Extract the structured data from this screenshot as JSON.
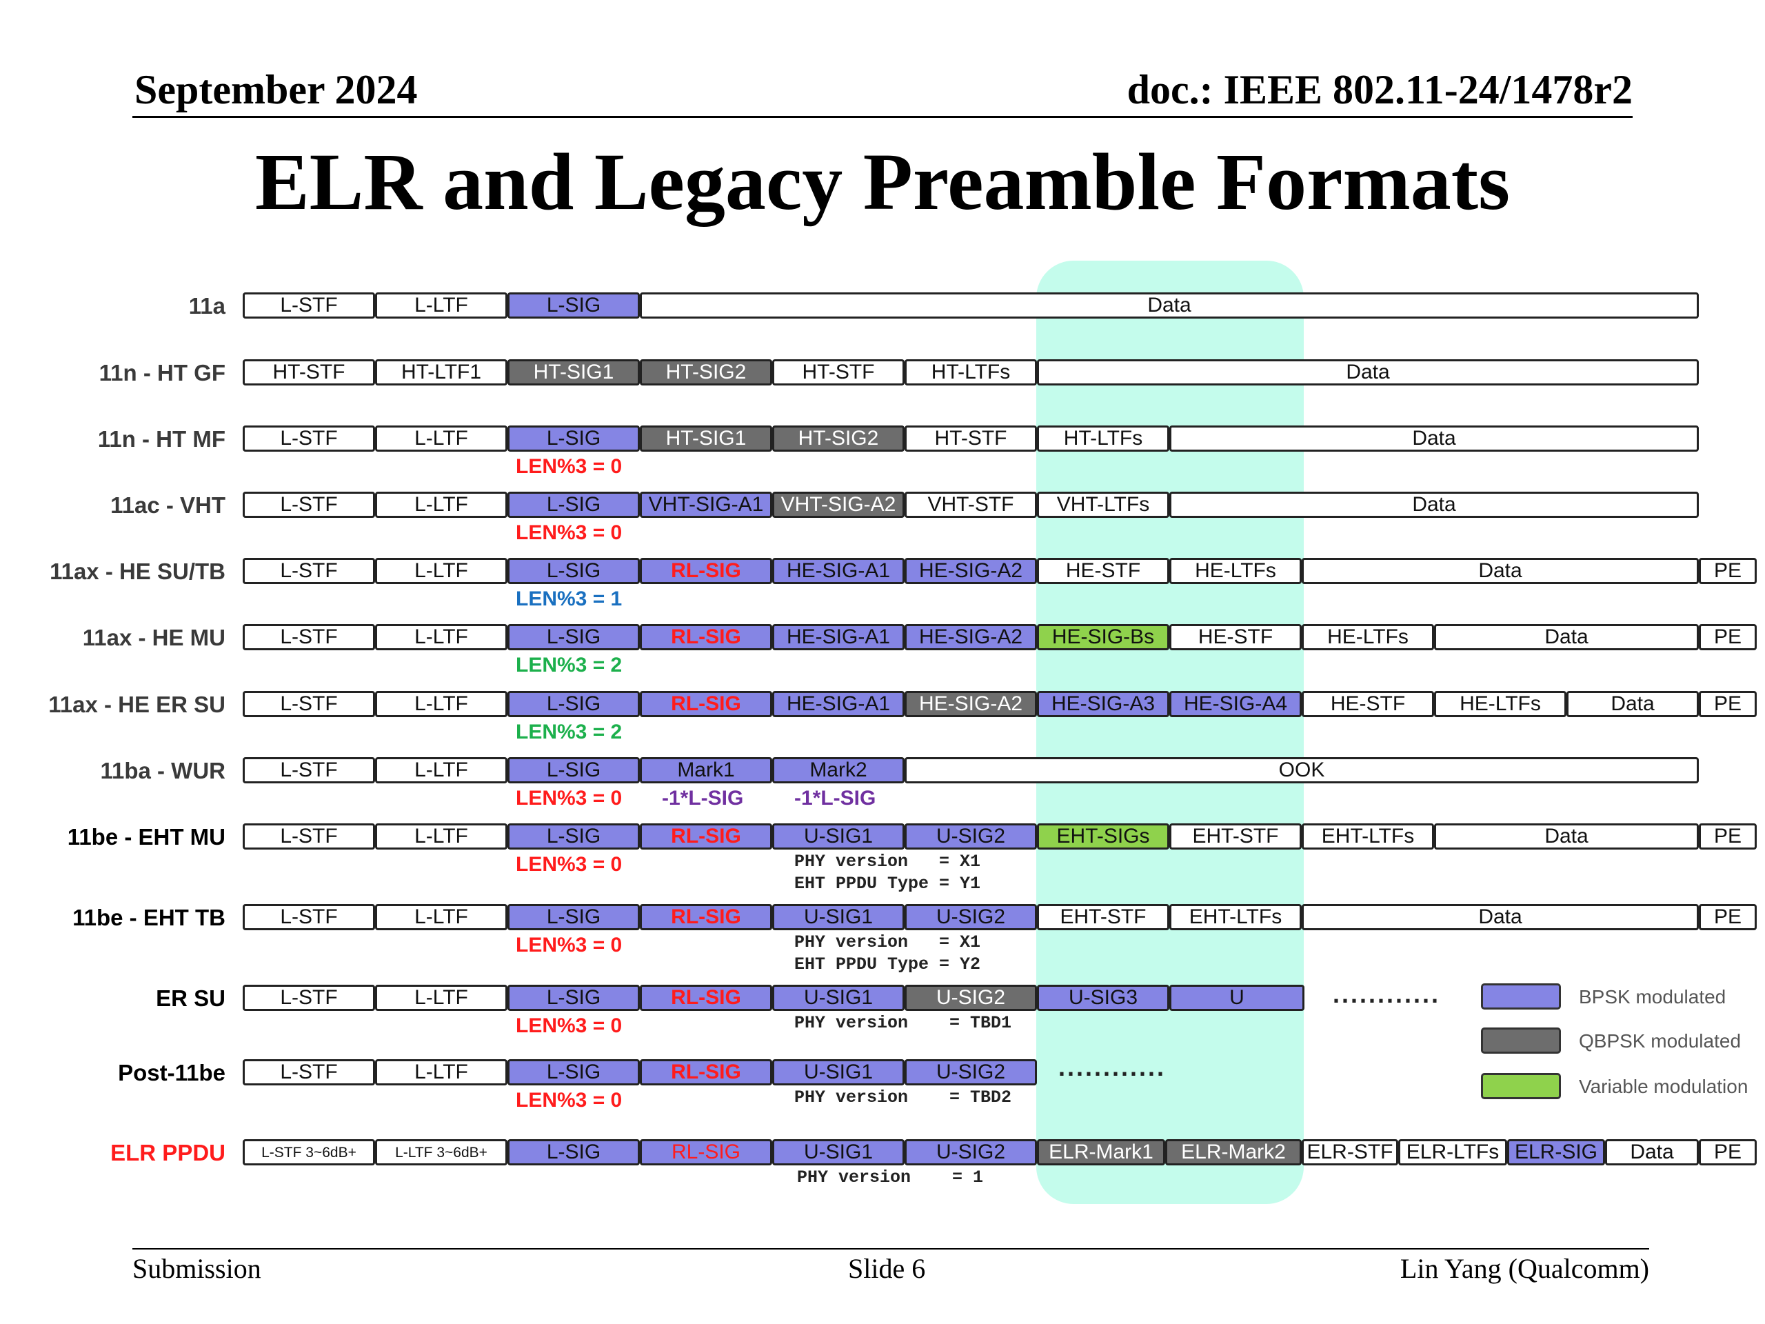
{
  "header": {
    "date": "September 2024",
    "doc": "doc.: IEEE 802.11-24/1478r2",
    "title": "ELR and Legacy Preamble Formats"
  },
  "footer": {
    "left": "Submission",
    "center": "Slide 6",
    "right": "Lin Yang (Qualcomm)"
  },
  "colors": {
    "bpsk": "#8585e4",
    "qbpsk": "#6d6d6d",
    "variable": "#8fd24c",
    "highlight": "#c4fcec",
    "red": "#ff1c1c",
    "blue": "#1a70c0",
    "green": "#1cb04c",
    "purple": "#7030a0"
  },
  "legend": [
    {
      "label": "BPSK modulated",
      "color": "#8585e4"
    },
    {
      "label": "QBPSK modulated",
      "color": "#6d6d6d"
    },
    {
      "label": "Variable modulation",
      "color": "#8fd24c"
    }
  ],
  "dots": [
    "............",
    "............"
  ],
  "rows": [
    {
      "label": "11a",
      "fields": [
        {
          "text": "L-STF",
          "mod": "none"
        },
        {
          "text": "L-LTF",
          "mod": "none"
        },
        {
          "text": "L-SIG",
          "mod": "bpsk"
        },
        {
          "text": "Data",
          "mod": "none"
        }
      ],
      "notes": []
    },
    {
      "label": "11n - HT GF",
      "fields": [
        {
          "text": "HT-STF",
          "mod": "none"
        },
        {
          "text": "HT-LTF1",
          "mod": "none"
        },
        {
          "text": "HT-SIG1",
          "mod": "qbpsk"
        },
        {
          "text": "HT-SIG2",
          "mod": "qbpsk"
        },
        {
          "text": "HT-STF",
          "mod": "none"
        },
        {
          "text": "HT-LTFs",
          "mod": "none"
        },
        {
          "text": "Data",
          "mod": "none"
        }
      ],
      "notes": []
    },
    {
      "label": "11n - HT MF",
      "fields": [
        {
          "text": "L-STF",
          "mod": "none"
        },
        {
          "text": "L-LTF",
          "mod": "none"
        },
        {
          "text": "L-SIG",
          "mod": "bpsk"
        },
        {
          "text": "HT-SIG1",
          "mod": "qbpsk"
        },
        {
          "text": "HT-SIG2",
          "mod": "qbpsk"
        },
        {
          "text": "HT-STF",
          "mod": "none"
        },
        {
          "text": "HT-LTFs",
          "mod": "none"
        },
        {
          "text": "Data",
          "mod": "none"
        }
      ],
      "notes": [
        {
          "text": "LEN%3 = 0",
          "color": "red"
        }
      ]
    },
    {
      "label": "11ac - VHT",
      "fields": [
        {
          "text": "L-STF",
          "mod": "none"
        },
        {
          "text": "L-LTF",
          "mod": "none"
        },
        {
          "text": "L-SIG",
          "mod": "bpsk"
        },
        {
          "text": "VHT-SIG-A1",
          "mod": "bpsk"
        },
        {
          "text": "VHT-SIG-A2",
          "mod": "qbpsk"
        },
        {
          "text": "VHT-STF",
          "mod": "none"
        },
        {
          "text": "VHT-LTFs",
          "mod": "none"
        },
        {
          "text": "Data",
          "mod": "none"
        }
      ],
      "notes": [
        {
          "text": "LEN%3 = 0",
          "color": "red"
        }
      ]
    },
    {
      "label": "11ax - HE SU/TB",
      "fields": [
        {
          "text": "L-STF",
          "mod": "none"
        },
        {
          "text": "L-LTF",
          "mod": "none"
        },
        {
          "text": "L-SIG",
          "mod": "bpsk"
        },
        {
          "text": "RL-SIG",
          "mod": "bpsk"
        },
        {
          "text": "HE-SIG-A1",
          "mod": "bpsk"
        },
        {
          "text": "HE-SIG-A2",
          "mod": "bpsk"
        },
        {
          "text": "HE-STF",
          "mod": "none"
        },
        {
          "text": "HE-LTFs",
          "mod": "none"
        },
        {
          "text": "Data",
          "mod": "none"
        },
        {
          "text": "PE",
          "mod": "none"
        }
      ],
      "notes": [
        {
          "text": "LEN%3 = 1",
          "color": "blue"
        }
      ]
    },
    {
      "label": "11ax - HE MU",
      "fields": [
        {
          "text": "L-STF",
          "mod": "none"
        },
        {
          "text": "L-LTF",
          "mod": "none"
        },
        {
          "text": "L-SIG",
          "mod": "bpsk"
        },
        {
          "text": "RL-SIG",
          "mod": "bpsk"
        },
        {
          "text": "HE-SIG-A1",
          "mod": "bpsk"
        },
        {
          "text": "HE-SIG-A2",
          "mod": "bpsk"
        },
        {
          "text": "HE-SIG-Bs",
          "mod": "variable"
        },
        {
          "text": "HE-STF",
          "mod": "none"
        },
        {
          "text": "HE-LTFs",
          "mod": "none"
        },
        {
          "text": "Data",
          "mod": "none"
        },
        {
          "text": "PE",
          "mod": "none"
        }
      ],
      "notes": [
        {
          "text": "LEN%3 = 2",
          "color": "green"
        }
      ]
    },
    {
      "label": "11ax - HE ER SU",
      "fields": [
        {
          "text": "L-STF",
          "mod": "none"
        },
        {
          "text": "L-LTF",
          "mod": "none"
        },
        {
          "text": "L-SIG",
          "mod": "bpsk"
        },
        {
          "text": "RL-SIG",
          "mod": "bpsk"
        },
        {
          "text": "HE-SIG-A1",
          "mod": "bpsk"
        },
        {
          "text": "HE-SIG-A2",
          "mod": "qbpsk"
        },
        {
          "text": "HE-SIG-A3",
          "mod": "bpsk"
        },
        {
          "text": "HE-SIG-A4",
          "mod": "bpsk"
        },
        {
          "text": "HE-STF",
          "mod": "none"
        },
        {
          "text": "HE-LTFs",
          "mod": "none"
        },
        {
          "text": "Data",
          "mod": "none"
        },
        {
          "text": "PE",
          "mod": "none"
        }
      ],
      "notes": [
        {
          "text": "LEN%3 = 2",
          "color": "green"
        }
      ]
    },
    {
      "label": "11ba - WUR",
      "fields": [
        {
          "text": "L-STF",
          "mod": "none"
        },
        {
          "text": "L-LTF",
          "mod": "none"
        },
        {
          "text": "L-SIG",
          "mod": "bpsk"
        },
        {
          "text": "Mark1",
          "mod": "bpsk"
        },
        {
          "text": "Mark2",
          "mod": "bpsk"
        },
        {
          "text": "OOK",
          "mod": "none"
        }
      ],
      "notes": [
        {
          "text": "LEN%3 = 0",
          "color": "red"
        },
        {
          "text": "-1*L-SIG",
          "color": "purple"
        },
        {
          "text": "-1*L-SIG",
          "color": "purple"
        }
      ]
    },
    {
      "label": "11be - EHT MU",
      "fields": [
        {
          "text": "L-STF",
          "mod": "none"
        },
        {
          "text": "L-LTF",
          "mod": "none"
        },
        {
          "text": "L-SIG",
          "mod": "bpsk"
        },
        {
          "text": "RL-SIG",
          "mod": "bpsk"
        },
        {
          "text": "U-SIG1",
          "mod": "bpsk"
        },
        {
          "text": "U-SIG2",
          "mod": "bpsk"
        },
        {
          "text": "EHT-SIGs",
          "mod": "variable"
        },
        {
          "text": "EHT-STF",
          "mod": "none"
        },
        {
          "text": "EHT-LTFs",
          "mod": "none"
        },
        {
          "text": "Data",
          "mod": "none"
        },
        {
          "text": "PE",
          "mod": "none"
        }
      ],
      "notes": [
        {
          "text": "LEN%3 = 0",
          "color": "red"
        }
      ],
      "code": [
        "PHY version   = X1",
        "EHT PPDU Type = Y1"
      ]
    },
    {
      "label": "11be - EHT TB",
      "fields": [
        {
          "text": "L-STF",
          "mod": "none"
        },
        {
          "text": "L-LTF",
          "mod": "none"
        },
        {
          "text": "L-SIG",
          "mod": "bpsk"
        },
        {
          "text": "RL-SIG",
          "mod": "bpsk"
        },
        {
          "text": "U-SIG1",
          "mod": "bpsk"
        },
        {
          "text": "U-SIG2",
          "mod": "bpsk"
        },
        {
          "text": "EHT-STF",
          "mod": "none"
        },
        {
          "text": "EHT-LTFs",
          "mod": "none"
        },
        {
          "text": "Data",
          "mod": "none"
        },
        {
          "text": "PE",
          "mod": "none"
        }
      ],
      "notes": [
        {
          "text": "LEN%3 = 0",
          "color": "red"
        }
      ],
      "code": [
        "PHY version   = X1",
        "EHT PPDU Type = Y2"
      ]
    },
    {
      "label": "ER SU",
      "fields": [
        {
          "text": "L-STF",
          "mod": "none"
        },
        {
          "text": "L-LTF",
          "mod": "none"
        },
        {
          "text": "L-SIG",
          "mod": "bpsk"
        },
        {
          "text": "RL-SIG",
          "mod": "bpsk"
        },
        {
          "text": "U-SIG1",
          "mod": "bpsk"
        },
        {
          "text": "U-SIG2",
          "mod": "qbpsk"
        },
        {
          "text": "U-SIG3",
          "mod": "bpsk"
        },
        {
          "text": "U",
          "mod": "bpsk"
        }
      ],
      "notes": [
        {
          "text": "LEN%3 = 0",
          "color": "red"
        }
      ],
      "code": [
        "PHY version    = TBD1"
      ]
    },
    {
      "label": "Post-11be",
      "fields": [
        {
          "text": "L-STF",
          "mod": "none"
        },
        {
          "text": "L-LTF",
          "mod": "none"
        },
        {
          "text": "L-SIG",
          "mod": "bpsk"
        },
        {
          "text": "RL-SIG",
          "mod": "bpsk"
        },
        {
          "text": "U-SIG1",
          "mod": "bpsk"
        },
        {
          "text": "U-SIG2",
          "mod": "bpsk"
        }
      ],
      "notes": [
        {
          "text": "LEN%3 = 0",
          "color": "red"
        }
      ],
      "code": [
        "PHY version    = TBD2"
      ]
    },
    {
      "label": "ELR PPDU",
      "fields": [
        {
          "text": "L-STF 3~6dB+",
          "mod": "none"
        },
        {
          "text": "L-LTF 3~6dB+",
          "mod": "none"
        },
        {
          "text": "L-SIG",
          "mod": "bpsk"
        },
        {
          "text": "RL-SIG",
          "mod": "bpsk"
        },
        {
          "text": "U-SIG1",
          "mod": "bpsk"
        },
        {
          "text": "U-SIG2",
          "mod": "bpsk"
        },
        {
          "text": "ELR-Mark1",
          "mod": "qbpsk"
        },
        {
          "text": "ELR-Mark2",
          "mod": "qbpsk"
        },
        {
          "text": "ELR-STF",
          "mod": "none"
        },
        {
          "text": "ELR-LTFs",
          "mod": "none"
        },
        {
          "text": "ELR-SIG",
          "mod": "bpsk"
        },
        {
          "text": "Data",
          "mod": "none"
        },
        {
          "text": "PE",
          "mod": "none"
        }
      ],
      "notes": [],
      "code": [
        "PHY version    = 1"
      ]
    }
  ]
}
